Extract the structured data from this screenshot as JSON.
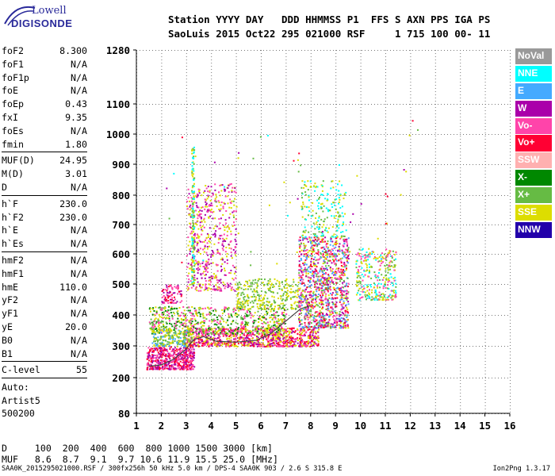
{
  "logo": {
    "line1": "Lowell",
    "line2": "DIGISONDE"
  },
  "header": {
    "line1": "Station YYYY DAY   DDD HHMMSS P1  FFS S AXN PPS IGA PS",
    "line2": "SaoLuis 2015 Oct22 295 021000 RSF     1 715 100 00- 11"
  },
  "params": [
    {
      "name": "foF2",
      "value": "8.300"
    },
    {
      "name": "foF1",
      "value": "N/A"
    },
    {
      "name": "foF1p",
      "value": "N/A"
    },
    {
      "name": "foE",
      "value": "N/A"
    },
    {
      "name": "foEp",
      "value": "0.43"
    },
    {
      "name": "fxI",
      "value": "9.35"
    },
    {
      "name": "foEs",
      "value": "N/A"
    },
    {
      "name": "fmin",
      "value": "1.80"
    },
    {
      "sep": true
    },
    {
      "name": "MUF(D)",
      "value": "24.95"
    },
    {
      "name": "M(D)",
      "value": "3.01"
    },
    {
      "name": "D",
      "value": "N/A"
    },
    {
      "sep": true
    },
    {
      "name": "h`F",
      "value": "230.0"
    },
    {
      "name": "h`F2",
      "value": "230.0"
    },
    {
      "name": "h`E",
      "value": "N/A"
    },
    {
      "name": "h`Es",
      "value": "N/A"
    },
    {
      "sep": true
    },
    {
      "name": "hmF2",
      "value": "N/A"
    },
    {
      "name": "hmF1",
      "value": "N/A"
    },
    {
      "name": "hmE",
      "value": "110.0"
    },
    {
      "name": "yF2",
      "value": "N/A"
    },
    {
      "name": "yF1",
      "value": "N/A"
    },
    {
      "name": "yE",
      "value": "20.0"
    },
    {
      "name": "B0",
      "value": "N/A"
    },
    {
      "name": "B1",
      "value": "N/A"
    },
    {
      "sep": true
    },
    {
      "name": "C-level",
      "value": "55"
    },
    {
      "sep": true
    }
  ],
  "auto": {
    "line1": "Auto:",
    "line2": "Artist5",
    "line3": "500200"
  },
  "dmuf": {
    "d_line": "D     100  200  400  600  800 1000 1500 3000 [km]",
    "muf_line": "MUF   8.6  8.7  9.1  9.7 10.6 11.9 15.5 25.0 [MHz]"
  },
  "footer": {
    "left": "SAA0K_2015295021000.RSF / 300fx256h 50 kHz 5.0 km / DPS-4 SAA0K 903 / 2.6 S 315.8 E",
    "right": "Ion2Png 1.3.17"
  },
  "legend": [
    {
      "label": "NoVal",
      "color": "#999999"
    },
    {
      "label": "NNE",
      "color": "#00ffff"
    },
    {
      "label": "E",
      "color": "#44aaff"
    },
    {
      "label": "W",
      "color": "#aa00aa"
    },
    {
      "label": "Vo-",
      "color": "#ff44aa"
    },
    {
      "label": "Vo+",
      "color": "#ff0033"
    },
    {
      "label": "SSW",
      "color": "#ffb0b0"
    },
    {
      "label": "X-",
      "color": "#008800"
    },
    {
      "label": "X+",
      "color": "#66bb44"
    },
    {
      "label": "SSE",
      "color": "#dddd00"
    },
    {
      "label": "NNW",
      "color": "#2200aa"
    }
  ],
  "chart_data": {
    "type": "scatter",
    "xlim": [
      1,
      16
    ],
    "ylim": [
      80,
      1280
    ],
    "x_ticks": [
      "1",
      "2",
      "3",
      "4",
      "5",
      "6",
      "7",
      "8",
      "9",
      "10",
      "11",
      "12",
      "13",
      "14",
      "15",
      "16"
    ],
    "y_ticks": [
      "80",
      "200",
      "300",
      "400",
      "500",
      "600",
      "700",
      "800",
      "900",
      "1000",
      "1100",
      "1280"
    ],
    "y_tick_values": [
      80,
      200,
      300,
      400,
      500,
      600,
      700,
      800,
      900,
      1000,
      1100,
      1280
    ],
    "grid": true,
    "trace": [
      [
        1.5,
        236
      ],
      [
        2.0,
        240
      ],
      [
        2.5,
        258
      ],
      [
        3.0,
        290
      ],
      [
        3.3,
        320
      ],
      [
        3.7,
        330
      ],
      [
        4.2,
        315
      ],
      [
        5.0,
        312
      ],
      [
        5.8,
        318
      ],
      [
        6.4,
        340
      ],
      [
        7.0,
        380
      ],
      [
        7.6,
        420
      ],
      [
        8.0,
        430
      ]
    ],
    "clusters": [
      {
        "x": [
          1.4,
          3.3
        ],
        "y": [
          228,
          300
        ],
        "colors": [
          "#ff0033",
          "#ff44aa",
          "#aa00aa"
        ],
        "n": 500
      },
      {
        "x": [
          2.9,
          8.3
        ],
        "y": [
          300,
          360
        ],
        "colors": [
          "#ff0033",
          "#ff44aa",
          "#aa00aa",
          "#dddd00"
        ],
        "n": 900
      },
      {
        "x": [
          1.5,
          7.0
        ],
        "y": [
          340,
          430
        ],
        "colors": [
          "#dddd00",
          "#66bb44",
          "#008800",
          "#ff44aa"
        ],
        "n": 700
      },
      {
        "x": [
          3.0,
          5.0
        ],
        "y": [
          480,
          840
        ],
        "colors": [
          "#aa00aa",
          "#ff44aa",
          "#dddd00"
        ],
        "n": 550
      },
      {
        "x": [
          3.2,
          3.3
        ],
        "y": [
          500,
          960
        ],
        "colors": [
          "#dddd00",
          "#66bb44",
          "#00ffff"
        ],
        "n": 150
      },
      {
        "x": [
          5.0,
          7.5
        ],
        "y": [
          420,
          520
        ],
        "colors": [
          "#dddd00",
          "#66bb44"
        ],
        "n": 300
      },
      {
        "x": [
          7.5,
          9.5
        ],
        "y": [
          360,
          660
        ],
        "colors": [
          "#ff0033",
          "#ff44aa",
          "#aa00aa",
          "#dddd00",
          "#44aaff",
          "#66bb44"
        ],
        "n": 1100
      },
      {
        "x": [
          7.6,
          9.4
        ],
        "y": [
          660,
          850
        ],
        "colors": [
          "#dddd00",
          "#66bb44",
          "#00ffff"
        ],
        "n": 200
      },
      {
        "x": [
          9.8,
          11.4
        ],
        "y": [
          450,
          620
        ],
        "colors": [
          "#dddd00",
          "#66bb44",
          "#00ffff",
          "#ff44aa"
        ],
        "n": 320
      },
      {
        "x": [
          2.0,
          2.8
        ],
        "y": [
          440,
          500
        ],
        "colors": [
          "#ff0033",
          "#ff44aa",
          "#aa00aa"
        ],
        "n": 80
      },
      {
        "x": [
          1.6,
          3.2
        ],
        "y": [
          300,
          360
        ],
        "colors": [
          "#dddd00",
          "#66bb44",
          "#44aaff"
        ],
        "n": 220
      },
      {
        "x": [
          2.0,
          12.5
        ],
        "y": [
          560,
          1050
        ],
        "colors": [
          "#dddd00",
          "#66bb44",
          "#aa00aa",
          "#00ffff",
          "#ff0033"
        ],
        "n": 60
      }
    ]
  }
}
